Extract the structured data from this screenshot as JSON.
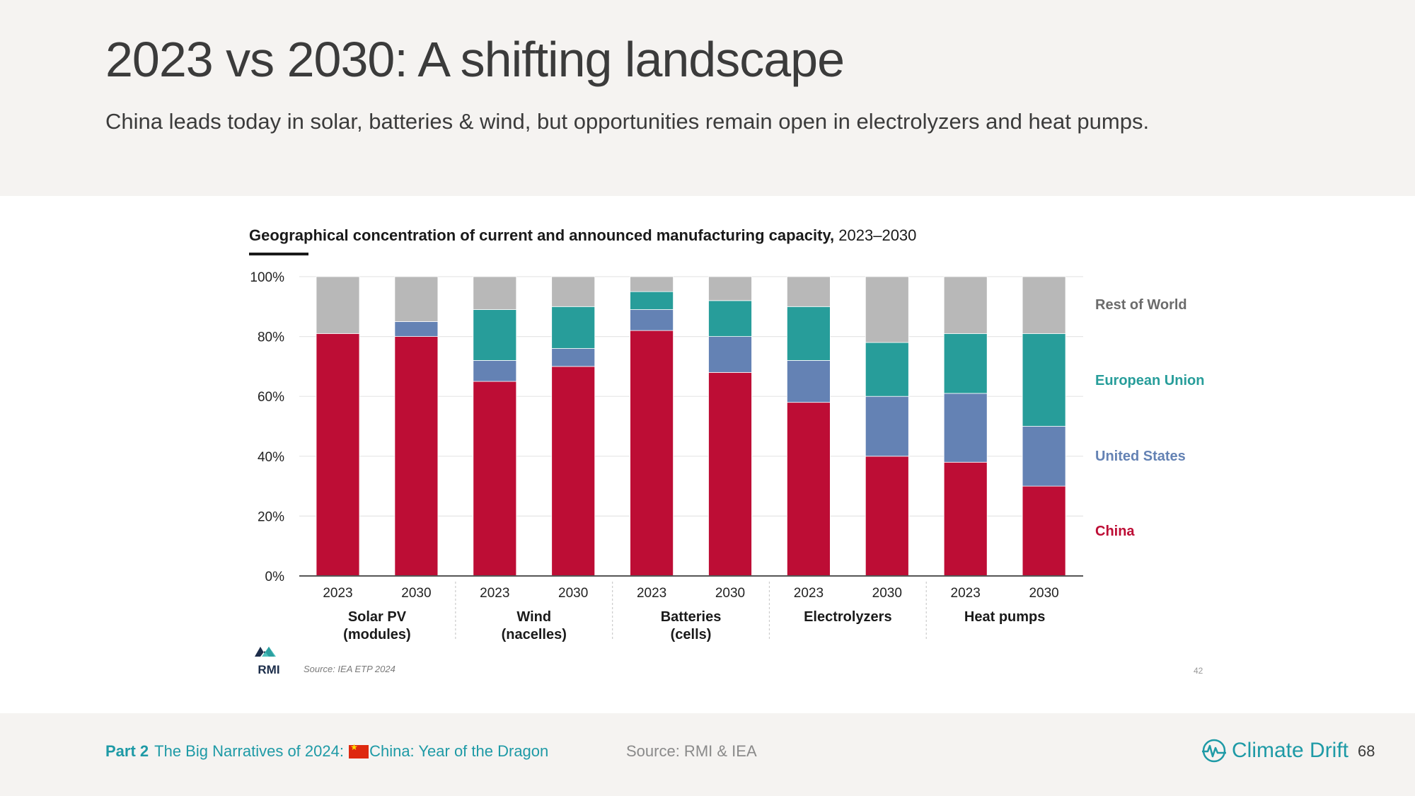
{
  "slide": {
    "title": "2023 vs 2030: A shifting landscape",
    "subtitle": "China leads today in solar, batteries  & wind, but opportunities remain open in electrolyzers and heat pumps."
  },
  "chart_heading": {
    "bold": "Geographical concentration of current and announced manufacturing capacity,",
    "normal": " 2023–2030"
  },
  "chart_data": {
    "type": "bar",
    "stacked": true,
    "ylim": [
      0,
      100
    ],
    "yticks": [
      "0%",
      "20%",
      "40%",
      "60%",
      "80%",
      "100%"
    ],
    "groups": [
      {
        "label_lines": [
          "Solar PV",
          "(modules)"
        ],
        "years": [
          "2023",
          "2030"
        ]
      },
      {
        "label_lines": [
          "Wind",
          "(nacelles)"
        ],
        "years": [
          "2023",
          "2030"
        ]
      },
      {
        "label_lines": [
          "Batteries",
          "(cells)"
        ],
        "years": [
          "2023",
          "2030"
        ]
      },
      {
        "label_lines": [
          "Electrolyzers"
        ],
        "years": [
          "2023",
          "2030"
        ]
      },
      {
        "label_lines": [
          "Heat pumps"
        ],
        "years": [
          "2023",
          "2030"
        ]
      }
    ],
    "series": [
      {
        "name": "China",
        "color": "#bd0d35",
        "values": [
          81,
          80,
          65,
          70,
          82,
          68,
          58,
          40,
          38,
          30
        ]
      },
      {
        "name": "United States",
        "color": "#6482b4",
        "values": [
          0,
          5,
          7,
          6,
          7,
          12,
          14,
          20,
          23,
          20
        ]
      },
      {
        "name": "European Union",
        "color": "#279d9a",
        "values": [
          0,
          0,
          17,
          14,
          6,
          12,
          18,
          18,
          20,
          31
        ]
      },
      {
        "name": "Rest of World",
        "color": "#b8b8b8",
        "values": [
          19,
          15,
          11,
          10,
          5,
          8,
          10,
          22,
          19,
          19
        ]
      }
    ],
    "legend": [
      "Rest of World",
      "European Union",
      "United States",
      "China"
    ],
    "source": "Source: IEA ETP 2024",
    "page_marker": "42",
    "logo_text": "RMI"
  },
  "footer": {
    "part_label": "Part 2",
    "section_before_flag": "The Big Narratives of 2024: ",
    "section_after_flag": "China: Year of the Dragon",
    "source": "Source: RMI & IEA",
    "brand": "Climate Drift",
    "page_number": "68",
    "accent_color": "#1e9aa6"
  }
}
